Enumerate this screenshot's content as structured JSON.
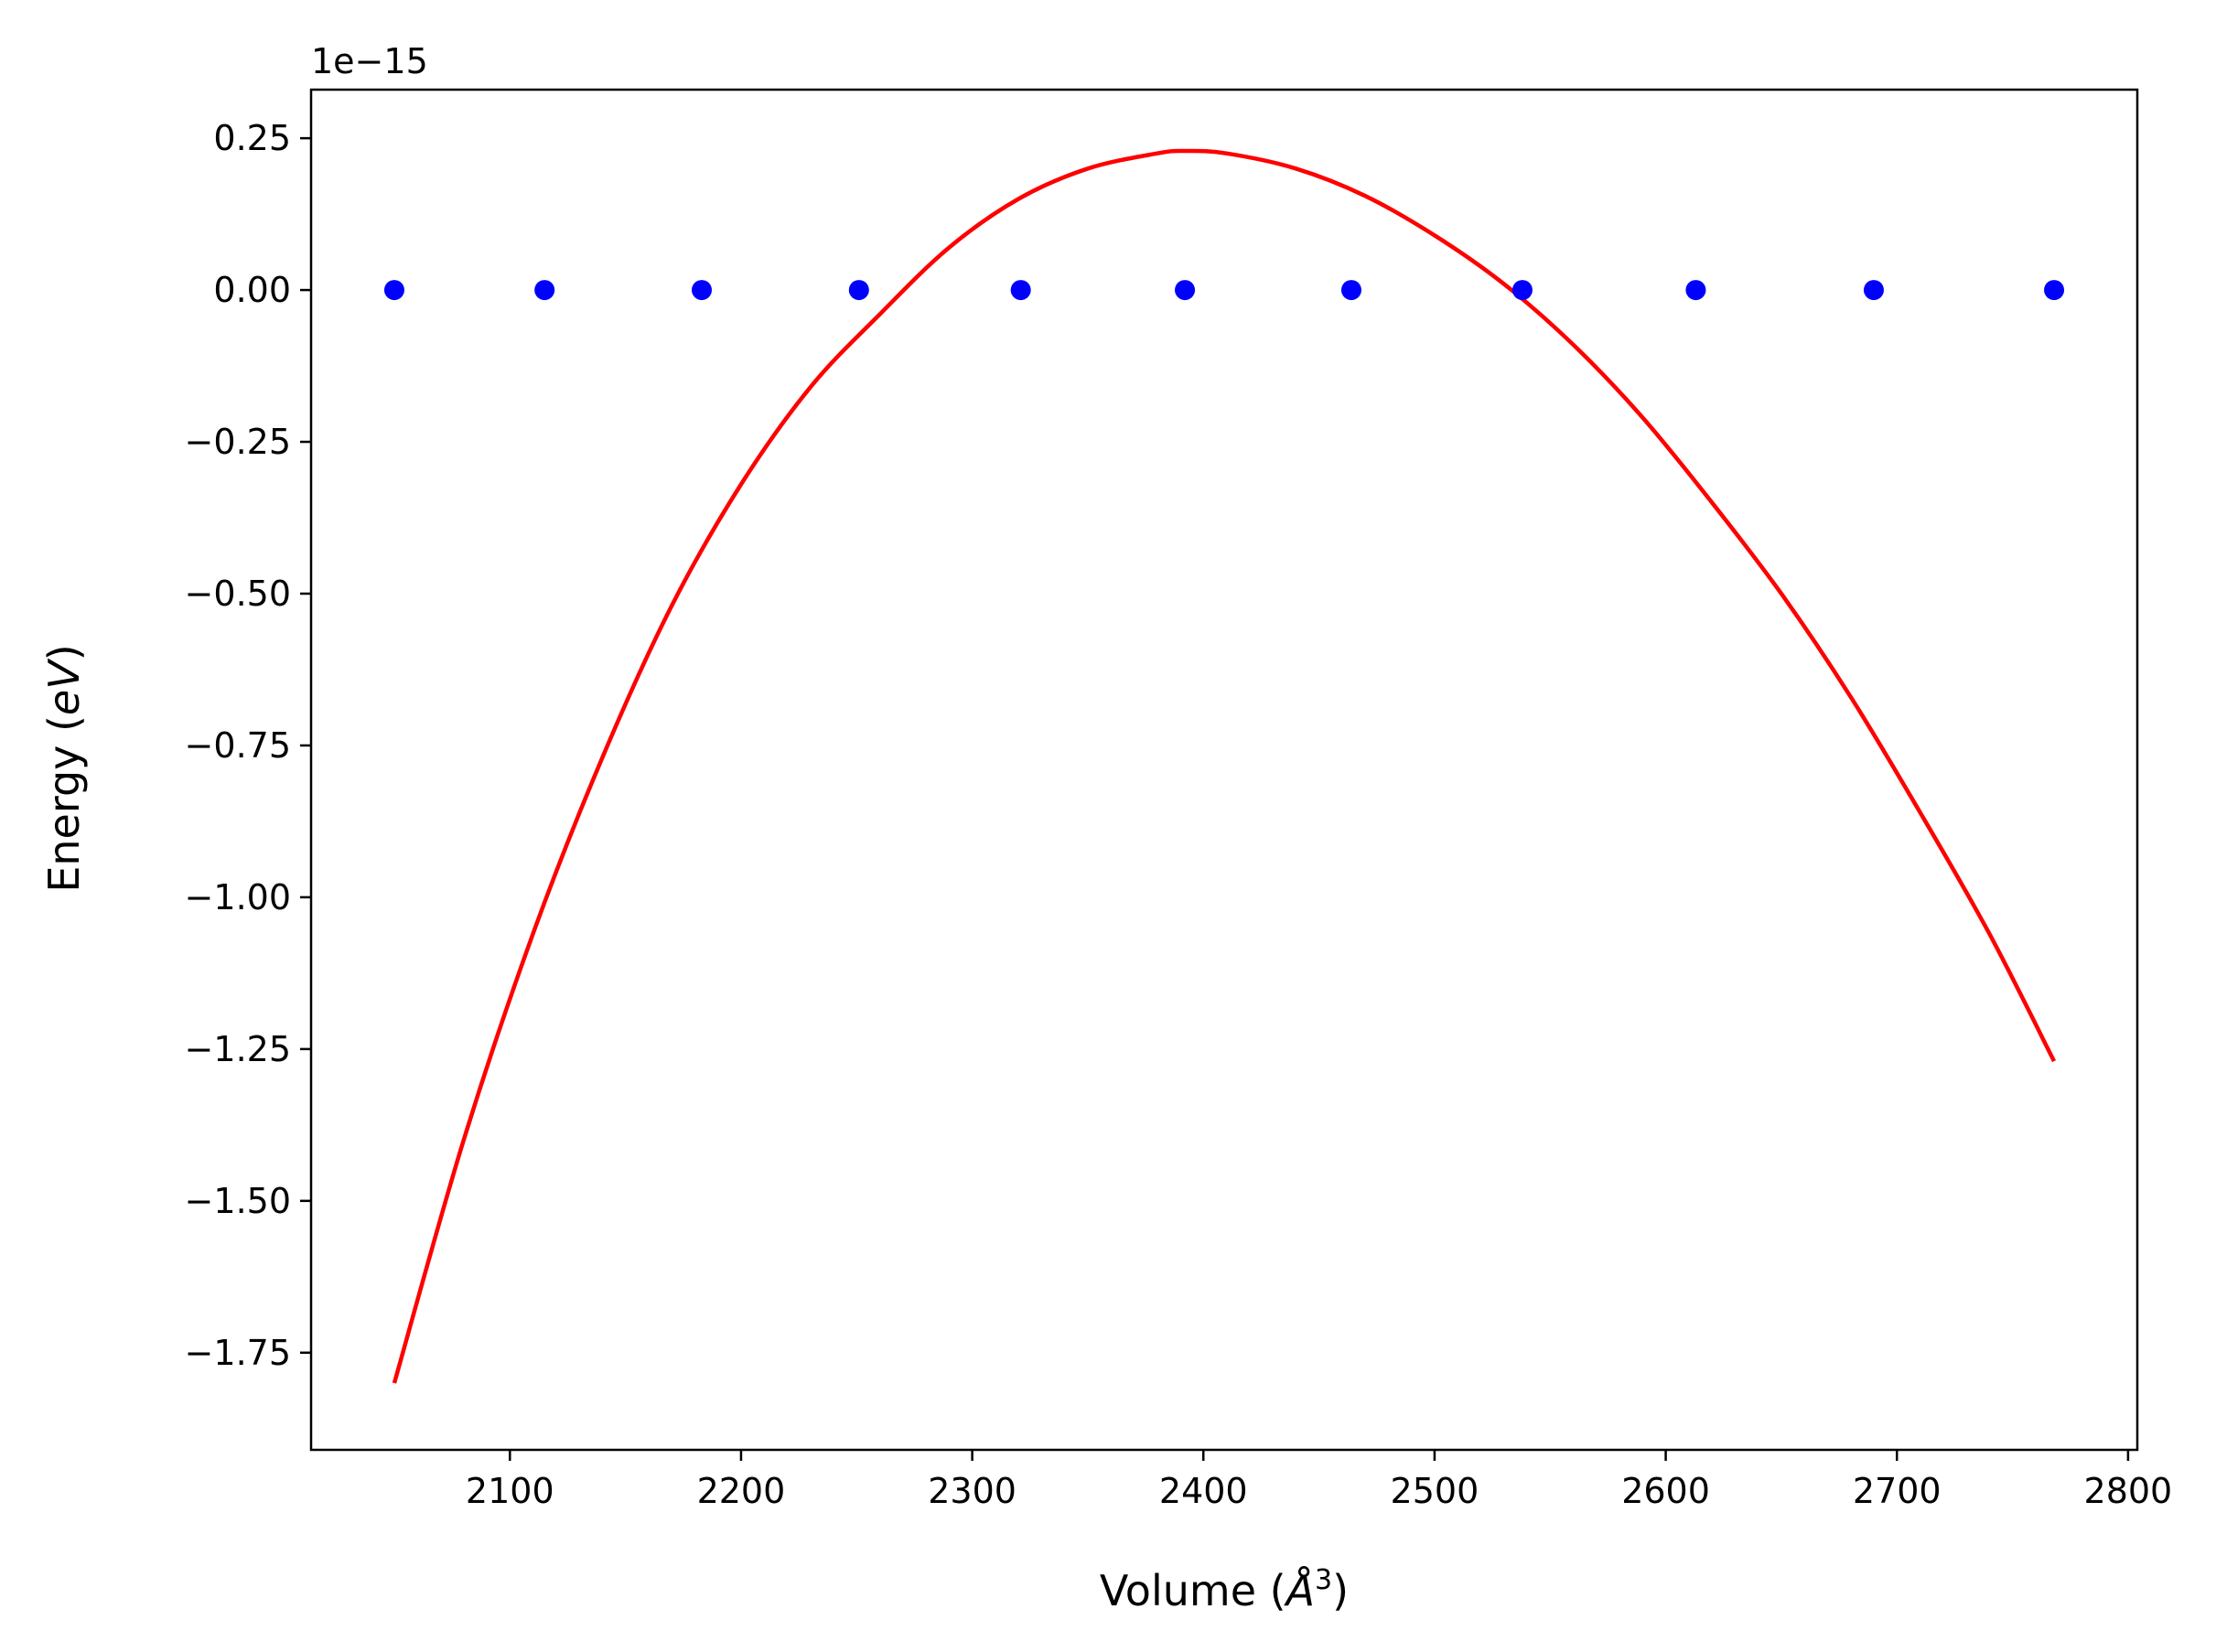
{
  "chart_data": {
    "type": "scatter",
    "xlabel": "Volume",
    "xlabel_unit": "Å",
    "xlabel_unit_exp": "3",
    "ylabel": "Energy",
    "ylabel_unit": "eV",
    "y_offset_label": "1e−15",
    "xlim": [
      2014,
      2804
    ],
    "ylim": [
      -1.91,
      0.33
    ],
    "xticks": [
      2100,
      2200,
      2300,
      2400,
      2500,
      2600,
      2700,
      2800
    ],
    "yticks": [
      0.25,
      0.0,
      -0.25,
      -0.5,
      -0.75,
      -1.0,
      -1.25,
      -1.5,
      -1.75
    ],
    "ytick_labels": [
      "0.25",
      "0.00",
      "−0.25",
      "−0.50",
      "−0.75",
      "−1.00",
      "−1.25",
      "−1.50",
      "−1.75"
    ],
    "grid": false,
    "series": [
      {
        "kind": "points",
        "color": "#0000ff",
        "x": [
          2050,
          2115,
          2183,
          2251,
          2321,
          2392,
          2464,
          2538,
          2613,
          2690,
          2768
        ],
        "y": [
          0,
          0,
          0,
          0,
          0,
          0,
          0,
          0,
          0,
          0,
          0
        ]
      },
      {
        "kind": "fit-curve",
        "color": "#ff0000",
        "x": [
          2050,
          2080,
          2110,
          2140,
          2170,
          2200,
          2230,
          2260,
          2290,
          2320,
          2350,
          2380,
          2392,
          2410,
          2440,
          2470,
          2500,
          2530,
          2560,
          2590,
          2620,
          2650,
          2680,
          2710,
          2740,
          2768
        ],
        "y": [
          -1.8,
          -1.4,
          -1.06,
          -0.77,
          -0.52,
          -0.32,
          -0.16,
          -0.04,
          0.07,
          0.15,
          0.2,
          0.225,
          0.229,
          0.225,
          0.2,
          0.155,
          0.09,
          0.01,
          -0.09,
          -0.21,
          -0.35,
          -0.5,
          -0.67,
          -0.86,
          -1.06,
          -1.27
        ]
      }
    ]
  }
}
